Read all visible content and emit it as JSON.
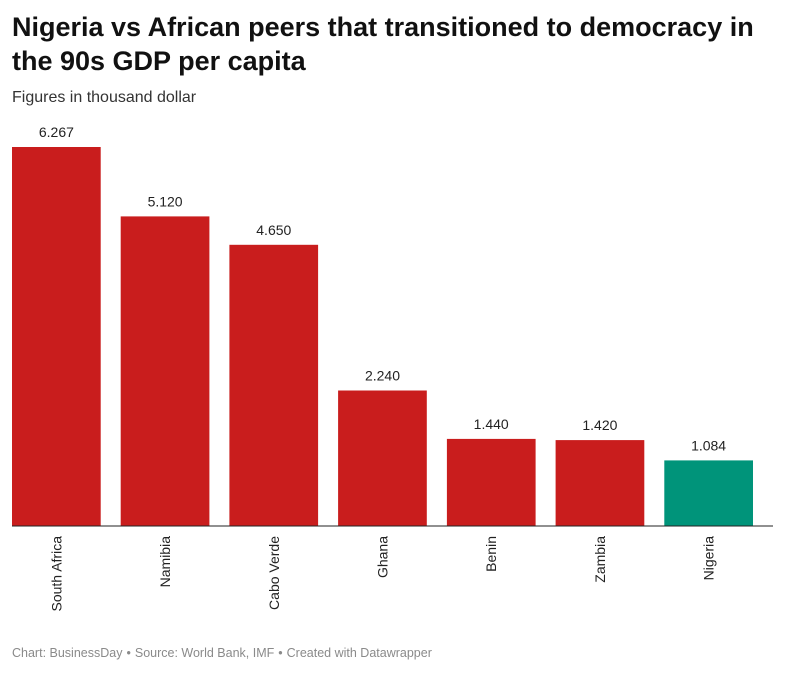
{
  "title": "Nigeria vs African peers that transitioned to democracy in the 90s GDP per capita",
  "subtitle": "Figures in thousand dollar",
  "footer": {
    "chart": "Chart: BusinessDay",
    "source": "Source: World Bank, IMF",
    "created": "Created with Datawrapper"
  },
  "colors": {
    "default_bar": "#c91d1d",
    "highlight_bar": "#00947a",
    "axis": "#222222"
  },
  "chart_data": {
    "type": "bar",
    "categories": [
      "South Africa",
      "Namibia",
      "Cabo Verde",
      "Ghana",
      "Benin",
      "Zambia",
      "Nigeria"
    ],
    "values": [
      6.267,
      5.12,
      4.65,
      2.24,
      1.44,
      1.42,
      1.084
    ],
    "value_labels": [
      "6.267",
      "5.120",
      "4.650",
      "2.240",
      "1.440",
      "1.420",
      "1.084"
    ],
    "highlight": "Nigeria",
    "ylim": [
      0,
      6.267
    ],
    "grid": false,
    "xlabel": "",
    "ylabel": ""
  }
}
